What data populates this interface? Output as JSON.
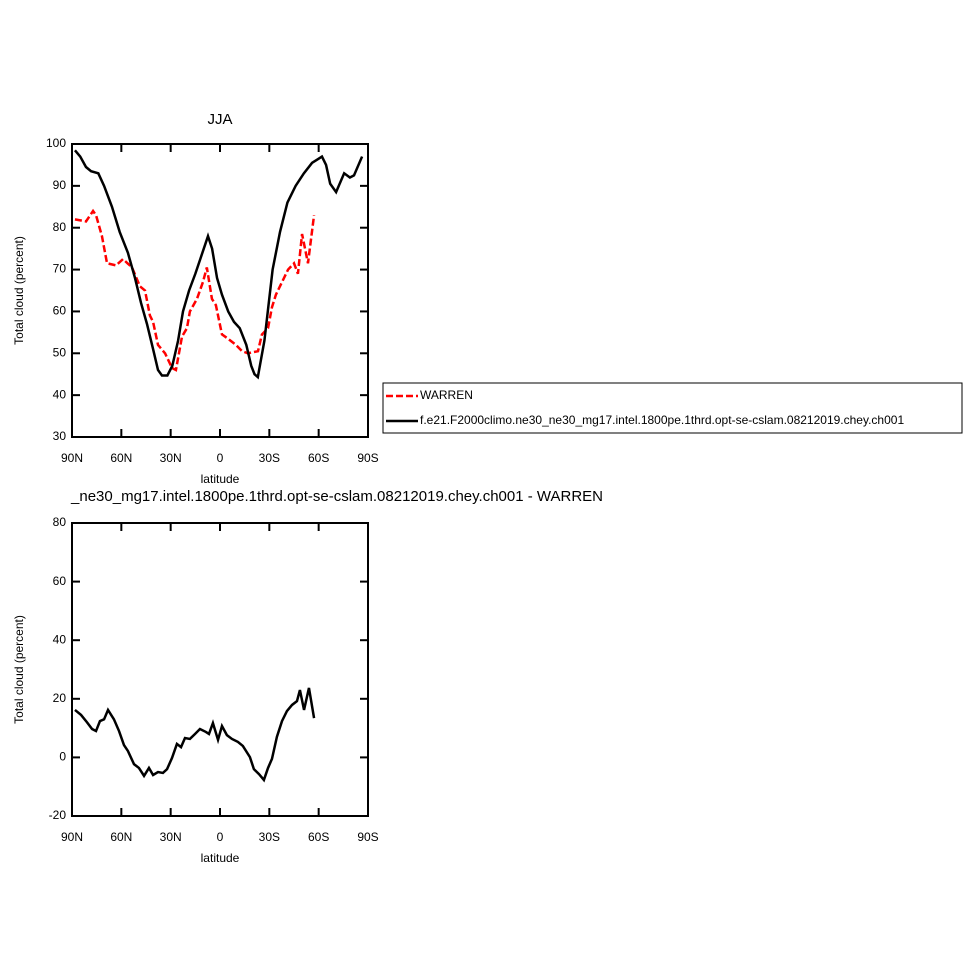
{
  "chart_data": [
    {
      "type": "line",
      "title": "JJA",
      "xlabel": "latitude",
      "ylabel": "Total cloud (percent)",
      "xlim": [
        90,
        -90
      ],
      "ylim": [
        30,
        100
      ],
      "xticks": [
        {
          "value": 90,
          "label": "90N"
        },
        {
          "value": 60,
          "label": "60N"
        },
        {
          "value": 30,
          "label": "30N"
        },
        0,
        {
          "value": -30,
          "label": "30S"
        },
        {
          "value": -60,
          "label": "60S"
        },
        {
          "value": -90,
          "label": "90S"
        }
      ],
      "yticks": [
        30,
        40,
        50,
        60,
        70,
        80,
        90,
        100
      ],
      "legend": "right",
      "series": [
        {
          "name": "WARREN",
          "color": "#ff0000",
          "dashed": true,
          "x": [
            88.2,
            81.5,
            77.2,
            75.4,
            71.8,
            68.7,
            63.2,
            59,
            53.5,
            48.7,
            45.6,
            42.6,
            40.7,
            37.7,
            33.4,
            29.2,
            26.8,
            23.1,
            20.1,
            18.3,
            14,
            10.4,
            8,
            4.9,
            2.5,
            -1.2,
            -4.8,
            -9.7,
            -13.4,
            -17,
            -23.1,
            -25.5,
            -29.2,
            -31.6,
            -34,
            -37.7,
            -41.4,
            -45,
            -47.4,
            -49.9,
            -53.5,
            -57.2
          ],
          "values": [
            82,
            81.5,
            84,
            83,
            78,
            71.5,
            71,
            72.5,
            70.5,
            66,
            65,
            59,
            57.5,
            52,
            50,
            46.5,
            46,
            54,
            56,
            60,
            63,
            67,
            70.5,
            63,
            61.5,
            54.5,
            53.5,
            52,
            50.5,
            50,
            50.5,
            54.5,
            56,
            61,
            64,
            67,
            70,
            71.5,
            69,
            78.5,
            71.5,
            83
          ]
        },
        {
          "name": "f.e21.F2000climo.ne30_ne30_mg17.intel.1800pe.1thrd.opt-se-cslam.08212019.chey.ch001",
          "color": "#000000",
          "dashed": false,
          "x": [
            88.2,
            85,
            81.5,
            78.4,
            74,
            70.5,
            65.7,
            61,
            56,
            51.7,
            48,
            44.4,
            40.7,
            37.7,
            35.3,
            32,
            29,
            25.5,
            22.5,
            18.8,
            15,
            12,
            9,
            7.3,
            4.8,
            1.8,
            -1.2,
            -5,
            -8.5,
            -12,
            -16,
            -19,
            -21,
            -23,
            -27,
            -32,
            -36.5,
            -41,
            -46,
            -51,
            -56,
            -60,
            -62,
            -64.5,
            -67,
            -70.6,
            -75.5,
            -79,
            -81.5,
            -86.4
          ],
          "values": [
            98.5,
            97,
            94.5,
            93.5,
            93,
            90,
            85,
            79,
            74,
            68,
            62,
            57,
            51,
            46,
            44.7,
            44.7,
            47,
            53,
            60,
            65,
            69,
            72.5,
            76,
            78,
            75,
            68,
            64,
            60,
            57.5,
            56,
            52,
            47,
            45,
            44.3,
            53,
            70,
            79,
            86,
            90,
            93,
            95.5,
            96.5,
            97,
            95,
            90.5,
            88.5,
            93,
            92,
            92.5,
            97
          ]
        }
      ]
    },
    {
      "type": "line",
      "title": "_ne30_mg17.intel.1800pe.1thrd.opt-se-cslam.08212019.chey.ch001 - WARREN",
      "xlabel": "latitude",
      "ylabel": "Total cloud (percent)",
      "xlim": [
        90,
        -90
      ],
      "ylim": [
        -20,
        80
      ],
      "xticks": [
        {
          "value": 90,
          "label": "90N"
        },
        {
          "value": 60,
          "label": "60N"
        },
        {
          "value": 30,
          "label": "30N"
        },
        0,
        {
          "value": -30,
          "label": "30S"
        },
        {
          "value": -60,
          "label": "60S"
        },
        {
          "value": -90,
          "label": "90S"
        }
      ],
      "yticks": [
        -20,
        0,
        20,
        40,
        60,
        80
      ],
      "series": [
        {
          "color": "#000000",
          "dashed": false,
          "x": [
            88.2,
            84.5,
            80.9,
            77.8,
            75.4,
            73,
            70.5,
            68.1,
            64.5,
            61.4,
            58.4,
            56,
            52.3,
            49.3,
            46.2,
            43.2,
            40.7,
            37.7,
            34.7,
            32.2,
            29.2,
            26.2,
            23.7,
            21.3,
            18.3,
            15.2,
            12.2,
            8.6,
            6.7,
            4.3,
            1.2,
            -1.2,
            -4.2,
            -7.3,
            -10.9,
            -13.9,
            -18.2,
            -20.6,
            -23.7,
            -26.7,
            -29.2,
            -31.6,
            -34.6,
            -37.7,
            -40.7,
            -43.8,
            -46.8,
            -48.6,
            -51.1,
            -54.1,
            -57.2
          ],
          "values": [
            16.2,
            14.5,
            12,
            9.7,
            9,
            12.4,
            13,
            16.2,
            13,
            9,
            4.2,
            2.2,
            -2.3,
            -3.6,
            -6.3,
            -3.6,
            -6,
            -5,
            -5.3,
            -4,
            -0.2,
            4.6,
            3.5,
            6.6,
            6.3,
            8,
            9.7,
            8.7,
            8,
            11.7,
            6,
            10.7,
            7.6,
            6.3,
            5.3,
            3.9,
            0.1,
            -4,
            -5.7,
            -7.7,
            -3.6,
            -0.5,
            7,
            12.4,
            15.8,
            17.9,
            19.2,
            23,
            16.2,
            23.7,
            13.4
          ]
        }
      ]
    }
  ]
}
